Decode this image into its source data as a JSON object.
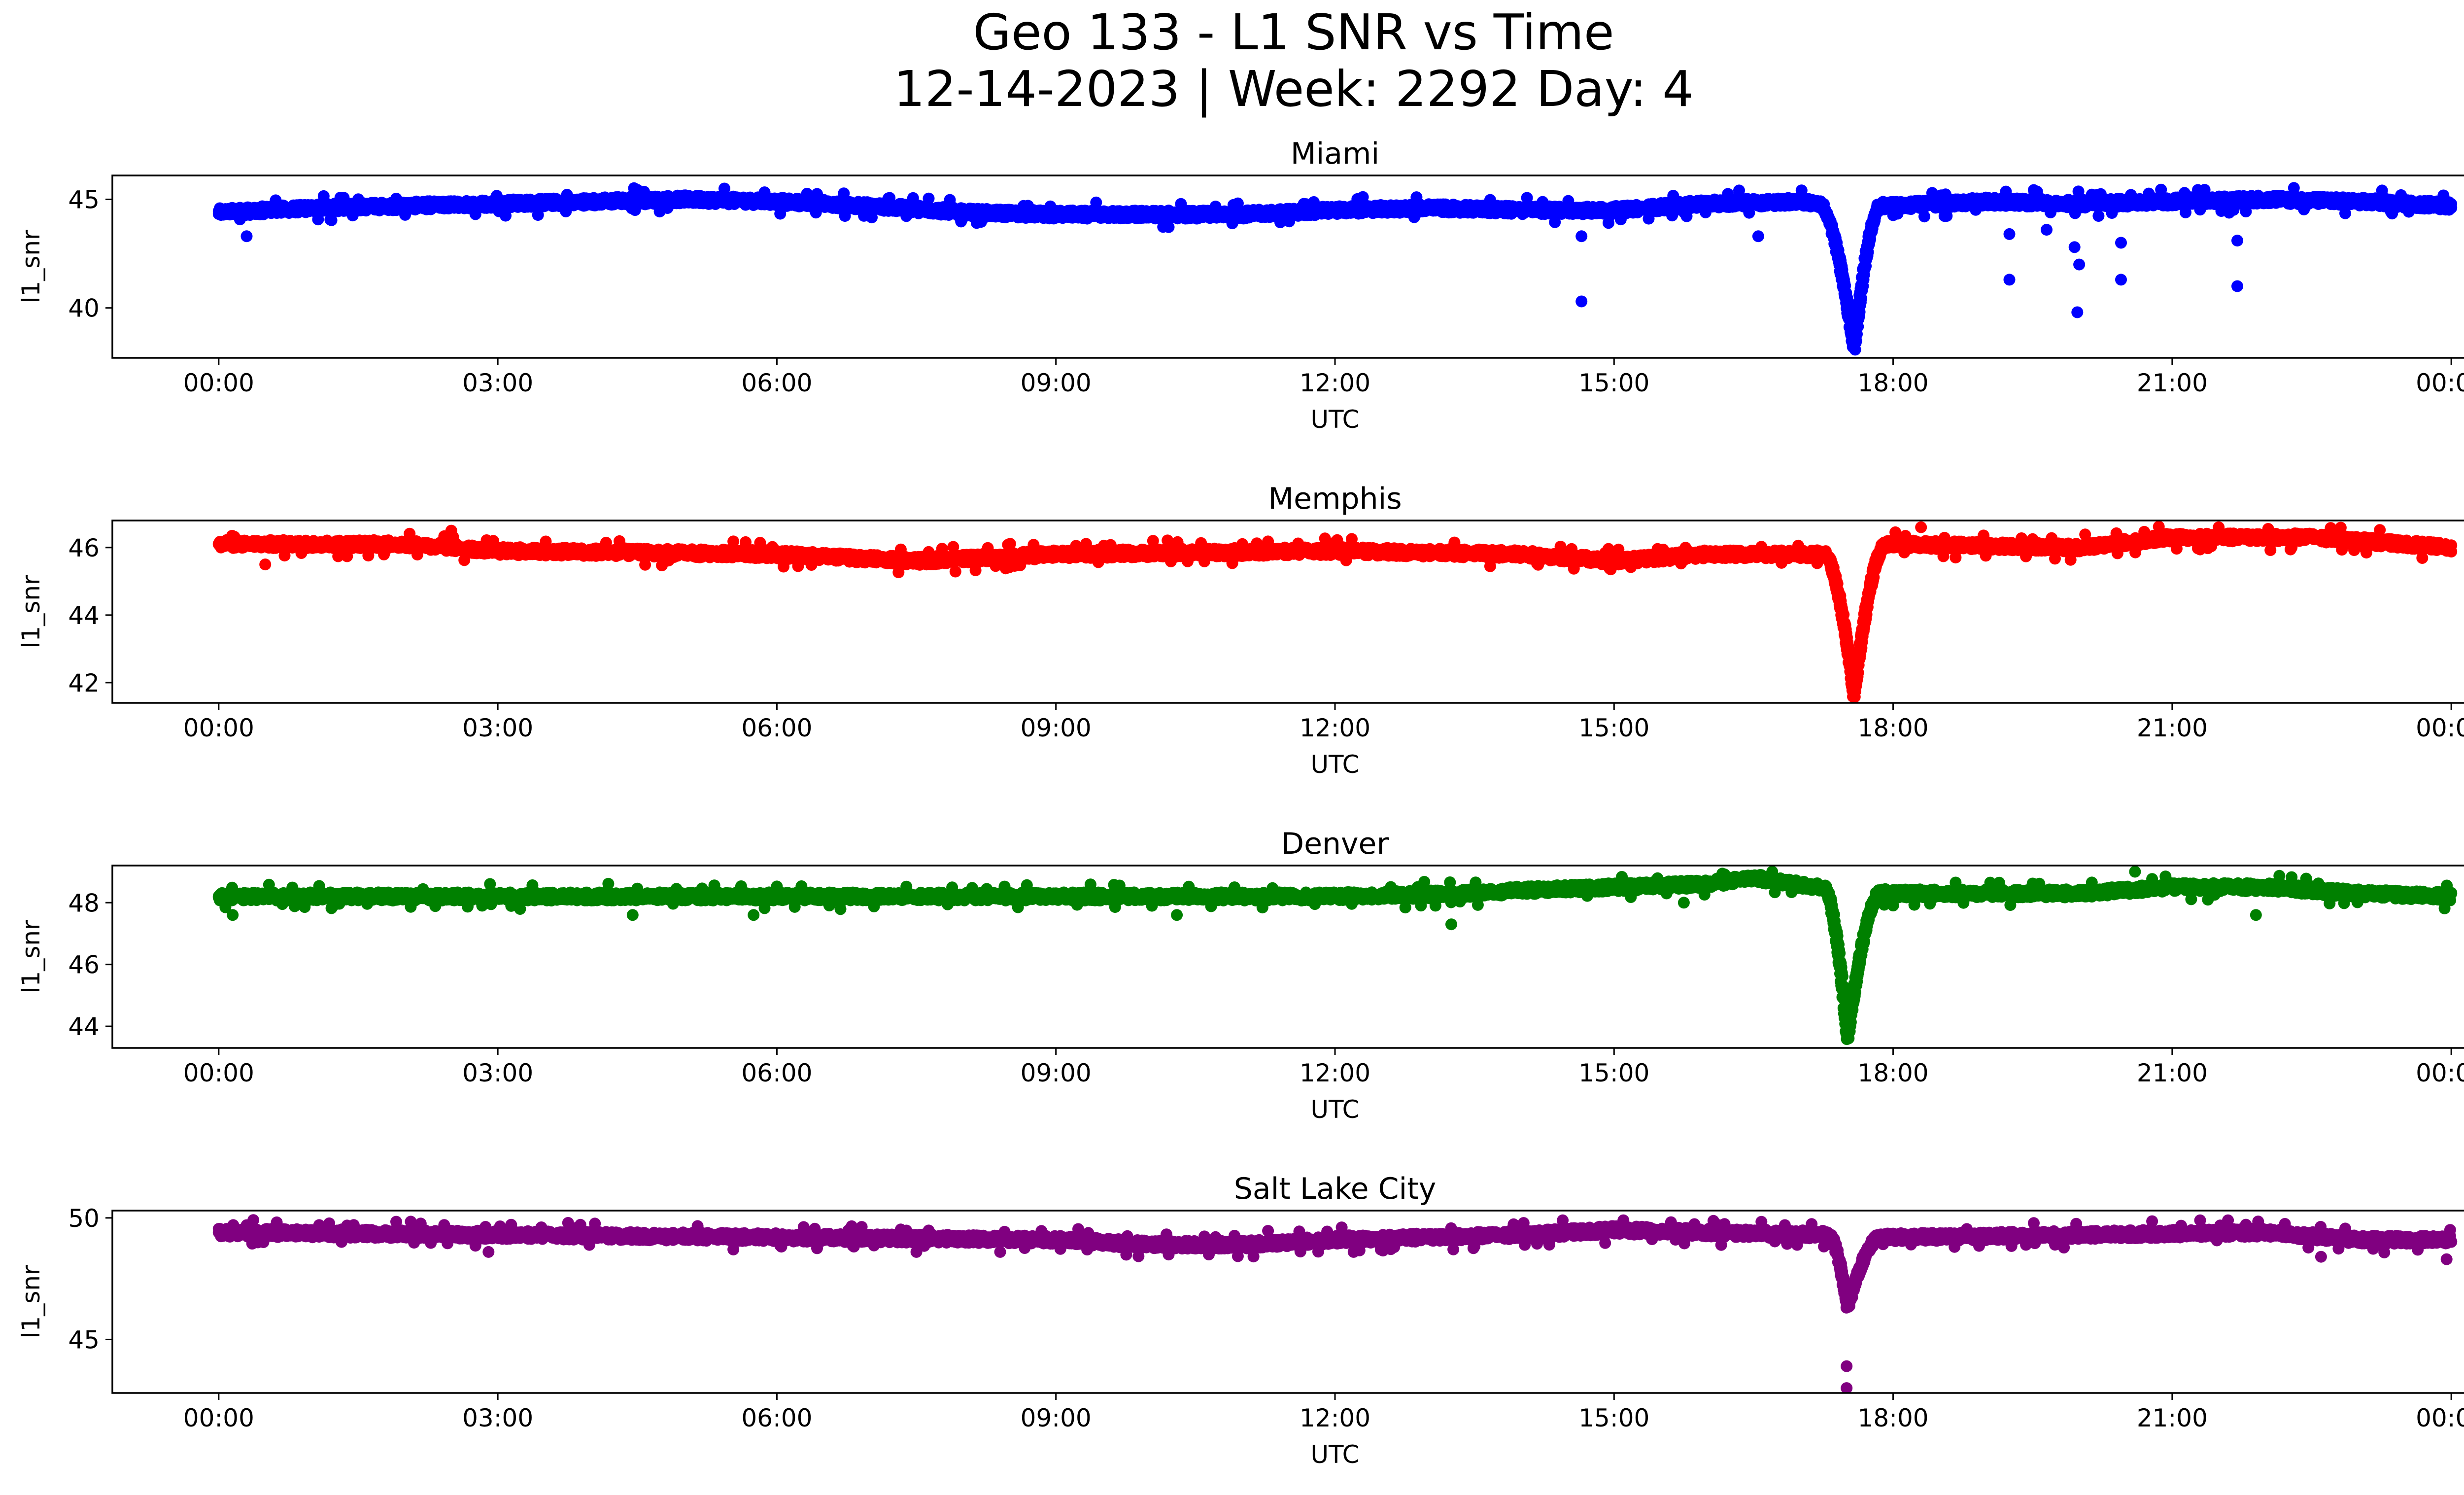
{
  "title_line1": "Geo 133 - L1 SNR vs Time",
  "title_line2": "12-14-2023 | Week: 2292 Day: 4",
  "chart_data": [
    {
      "type": "scatter",
      "title": "Miami",
      "xlabel": "UTC",
      "ylabel": "l1_snr",
      "color": "#0000ff",
      "x_unit": "hours",
      "x_ticks": [
        "00:00",
        "03:00",
        "06:00",
        "09:00",
        "12:00",
        "15:00",
        "18:00",
        "21:00",
        "00:00"
      ],
      "xlim": [
        "00:00",
        "00:00 (+1 day)"
      ],
      "yticks": [
        40,
        45
      ],
      "ylim": [
        37.7,
        46.1
      ],
      "baseline": [
        [
          0,
          44.4
        ],
        [
          0.5,
          44.5
        ],
        [
          1,
          44.6
        ],
        [
          2,
          44.7
        ],
        [
          3,
          44.8
        ],
        [
          4,
          44.9
        ],
        [
          5,
          45.0
        ],
        [
          6,
          44.9
        ],
        [
          7,
          44.7
        ],
        [
          8,
          44.4
        ],
        [
          9,
          44.3
        ],
        [
          10,
          44.3
        ],
        [
          11,
          44.3
        ],
        [
          12,
          44.5
        ],
        [
          13,
          44.6
        ],
        [
          14,
          44.5
        ],
        [
          15,
          44.5
        ],
        [
          16,
          44.8
        ],
        [
          17,
          44.9
        ],
        [
          17.2,
          44.8
        ],
        [
          18,
          44.7
        ],
        [
          19,
          44.9
        ],
        [
          20,
          44.8
        ],
        [
          21,
          44.9
        ],
        [
          22,
          45.0
        ],
        [
          23,
          44.9
        ],
        [
          24,
          44.7
        ]
      ],
      "dip": {
        "start": 17.2,
        "min_time": 17.57,
        "end": 17.85,
        "min_value": 38.0
      },
      "outliers": [
        [
          0.3,
          43.3
        ],
        [
          14.65,
          43.3
        ],
        [
          14.65,
          40.3
        ],
        [
          16.55,
          43.3
        ],
        [
          19.25,
          43.4
        ],
        [
          19.25,
          41.3
        ],
        [
          19.65,
          43.6
        ],
        [
          19.95,
          42.8
        ],
        [
          19.98,
          39.8
        ],
        [
          20.0,
          42.0
        ],
        [
          20.45,
          41.3
        ],
        [
          20.45,
          43.0
        ],
        [
          21.7,
          41.0
        ],
        [
          21.7,
          43.1
        ]
      ]
    },
    {
      "type": "scatter",
      "title": "Memphis",
      "xlabel": "UTC",
      "ylabel": "l1_snr",
      "color": "#ff0000",
      "x_unit": "hours",
      "x_ticks": [
        "00:00",
        "03:00",
        "06:00",
        "09:00",
        "12:00",
        "15:00",
        "18:00",
        "21:00",
        "00:00"
      ],
      "xlim": [
        "00:00",
        "00:00 (+1 day)"
      ],
      "yticks": [
        42,
        44,
        46
      ],
      "ylim": [
        41.4,
        46.8
      ],
      "baseline": [
        [
          0,
          46.1
        ],
        [
          2,
          46.1
        ],
        [
          3,
          45.9
        ],
        [
          6,
          45.8
        ],
        [
          7.5,
          45.6
        ],
        [
          9,
          45.8
        ],
        [
          12,
          45.9
        ],
        [
          14,
          45.8
        ],
        [
          15,
          45.6
        ],
        [
          16,
          45.8
        ],
        [
          17.2,
          45.8
        ],
        [
          18,
          46.1
        ],
        [
          20,
          46.0
        ],
        [
          21,
          46.3
        ],
        [
          22.5,
          46.3
        ],
        [
          24,
          46.0
        ]
      ],
      "dip": {
        "start": 17.25,
        "min_time": 17.57,
        "end": 17.9,
        "min_value": 41.6
      },
      "outliers": [
        [
          0.5,
          45.5
        ],
        [
          2.5,
          46.5
        ],
        [
          18.3,
          46.6
        ],
        [
          21.5,
          46.6
        ]
      ]
    },
    {
      "type": "scatter",
      "title": "Denver",
      "xlabel": "UTC",
      "ylabel": "l1_snr",
      "color": "#008000",
      "x_unit": "hours",
      "x_ticks": [
        "00:00",
        "03:00",
        "06:00",
        "09:00",
        "12:00",
        "15:00",
        "18:00",
        "21:00",
        "00:00"
      ],
      "xlim": [
        "00:00",
        "00:00 (+1 day)"
      ],
      "yticks": [
        44,
        46,
        48
      ],
      "ylim": [
        43.3,
        49.2
      ],
      "baseline": [
        [
          0,
          48.2
        ],
        [
          4,
          48.2
        ],
        [
          8,
          48.2
        ],
        [
          12,
          48.2
        ],
        [
          13.5,
          48.3
        ],
        [
          14,
          48.4
        ],
        [
          15,
          48.5
        ],
        [
          16,
          48.6
        ],
        [
          16.5,
          48.8
        ],
        [
          17.2,
          48.5
        ],
        [
          18,
          48.3
        ],
        [
          20,
          48.3
        ],
        [
          21,
          48.5
        ],
        [
          22,
          48.5
        ],
        [
          23,
          48.3
        ],
        [
          24,
          48.2
        ]
      ],
      "dip": {
        "start": 17.25,
        "min_time": 17.5,
        "end": 17.85,
        "min_value": 43.6
      },
      "outliers": [
        [
          0.15,
          47.6
        ],
        [
          4.45,
          47.6
        ],
        [
          5.75,
          47.6
        ],
        [
          10.3,
          47.6
        ],
        [
          13.25,
          47.3
        ],
        [
          15.75,
          48.0
        ],
        [
          16.7,
          49.0
        ],
        [
          20.6,
          49.0
        ],
        [
          21.9,
          47.6
        ]
      ]
    },
    {
      "type": "scatter",
      "title": "Salt Lake City",
      "xlabel": "UTC",
      "ylabel": "l1_snr",
      "color": "#800080",
      "x_unit": "hours",
      "x_ticks": [
        "00:00",
        "03:00",
        "06:00",
        "09:00",
        "12:00",
        "15:00",
        "18:00",
        "21:00",
        "00:00"
      ],
      "xlim": [
        "00:00",
        "00:00 (+1 day)"
      ],
      "yticks": [
        45,
        50
      ],
      "ylim": [
        42.8,
        50.3
      ],
      "baseline": [
        [
          0,
          49.4
        ],
        [
          3,
          49.3
        ],
        [
          6,
          49.2
        ],
        [
          9,
          49.1
        ],
        [
          10,
          48.9
        ],
        [
          11,
          48.9
        ],
        [
          12,
          49.1
        ],
        [
          13,
          49.2
        ],
        [
          14,
          49.3
        ],
        [
          15,
          49.5
        ],
        [
          16,
          49.4
        ],
        [
          17.3,
          49.3
        ],
        [
          18,
          49.2
        ],
        [
          20,
          49.3
        ],
        [
          22,
          49.4
        ],
        [
          23,
          49.1
        ],
        [
          24,
          49.1
        ]
      ],
      "dip": {
        "start": 17.3,
        "min_time": 17.5,
        "end": 17.85,
        "min_value": 46.3
      },
      "outliers": [
        [
          2.9,
          48.6
        ],
        [
          7.5,
          48.6
        ],
        [
          8.4,
          48.6
        ],
        [
          12.2,
          48.6
        ],
        [
          15.1,
          49.9
        ],
        [
          17.5,
          43.9
        ],
        [
          17.5,
          43.0
        ],
        [
          21.3,
          49.9
        ],
        [
          21.6,
          49.9
        ],
        [
          22.6,
          48.4
        ],
        [
          23.95,
          48.3
        ]
      ]
    }
  ]
}
